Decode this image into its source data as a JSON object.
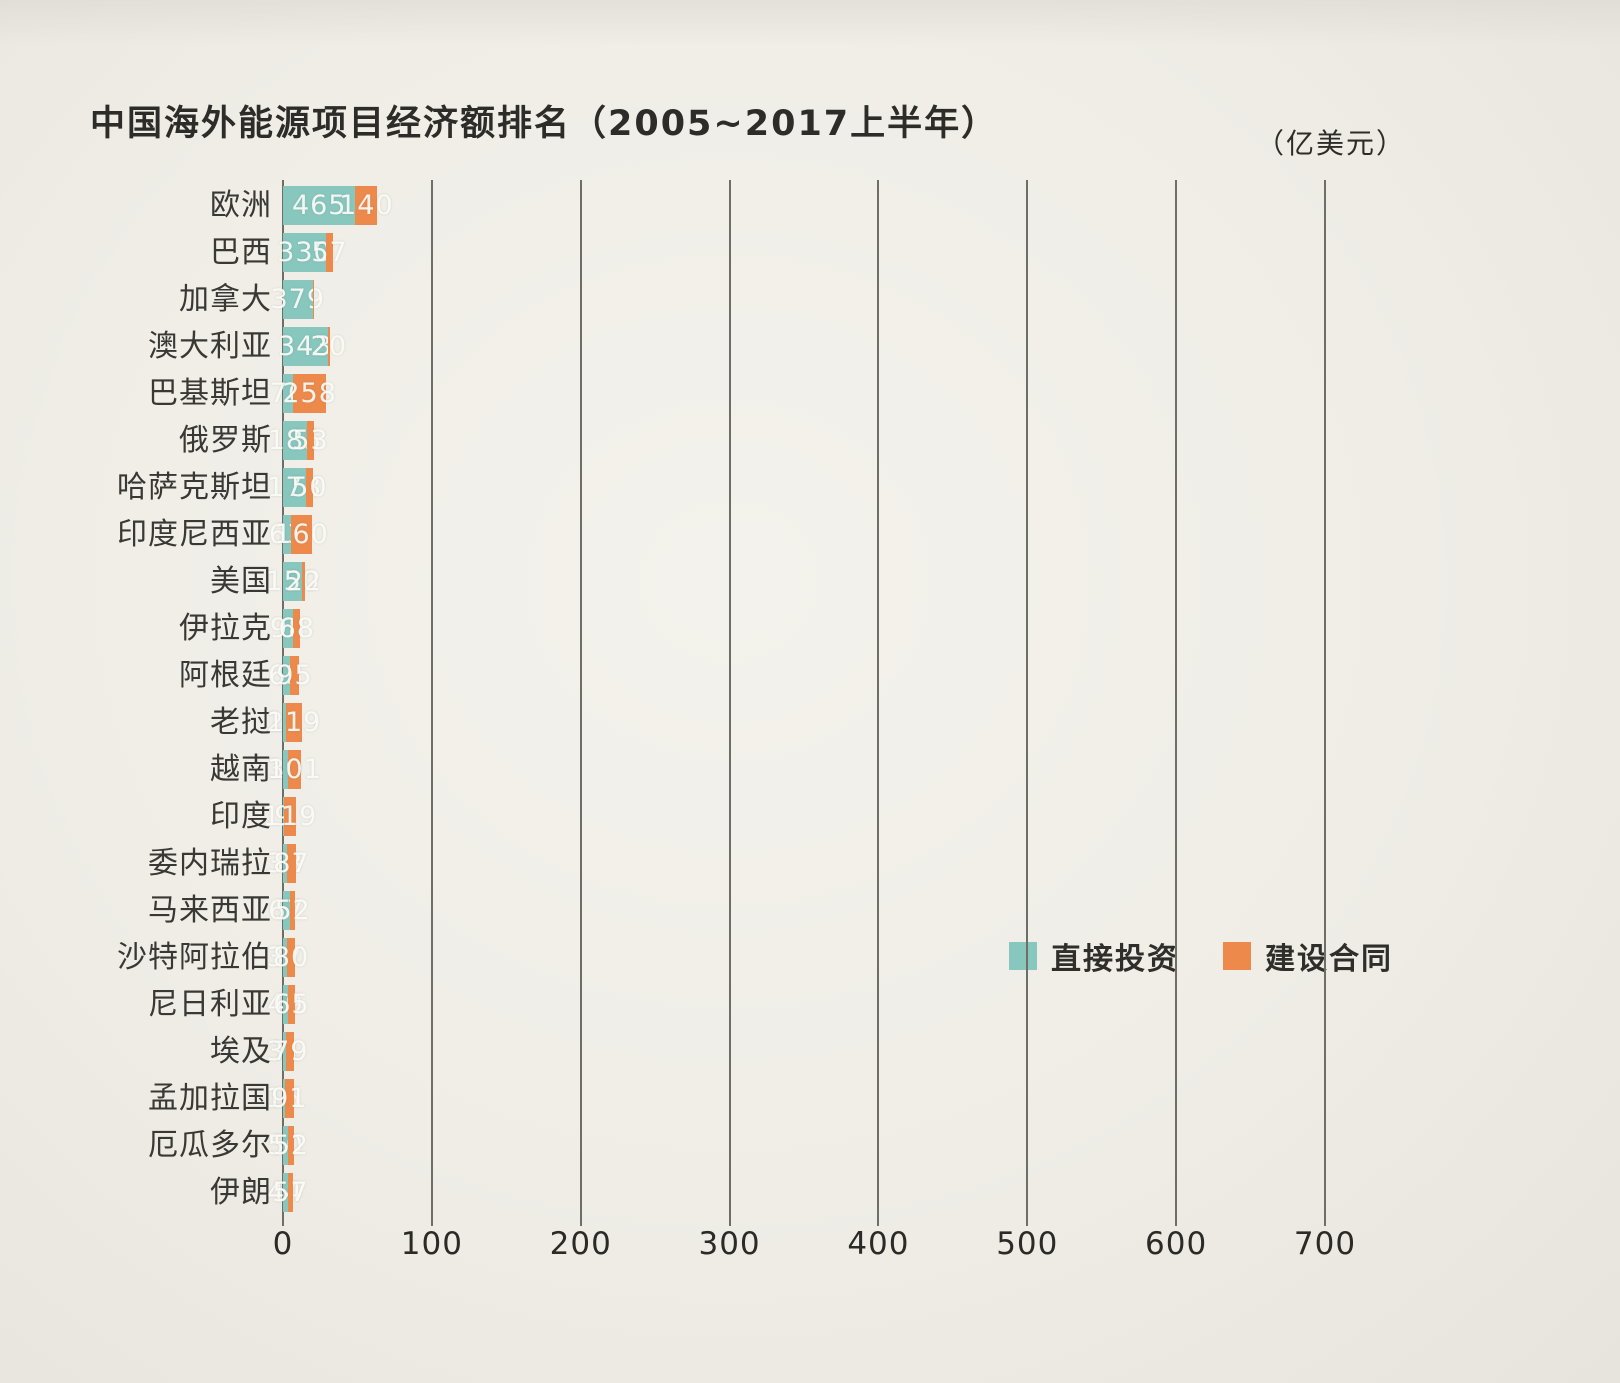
{
  "title": "中国海外能源项目经济额排名（2005~2017上半年）",
  "unit_label": "（亿美元）",
  "legend": [
    {
      "label": "直接投资",
      "color": "#87c7be"
    },
    {
      "label": "建设合同",
      "color": "#ed8a4b"
    }
  ],
  "chart_data": {
    "type": "bar",
    "orientation": "horizontal",
    "stacked": true,
    "title": "中国海外能源项目经济额排名（2005~2017上半年）",
    "unit": "亿美元",
    "grid": true,
    "legend_position": "inside-right",
    "xlim": [
      0,
      700
    ],
    "x_ticks": [
      0,
      100,
      200,
      300,
      400,
      500,
      600,
      700
    ],
    "categories": [
      "欧洲",
      "巴西",
      "加拿大",
      "澳大利亚",
      "巴基斯坦",
      "俄罗斯",
      "哈萨克斯坦",
      "印度尼西亚",
      "美国",
      "伊拉克",
      "阿根廷",
      "老挝",
      "越南",
      "印度",
      "委内瑞拉",
      "马来西亚",
      "沙特阿拉伯",
      "尼日利亚",
      "埃及",
      "孟加拉国",
      "厄瓜多尔",
      "伊朗"
    ],
    "series": [
      {
        "name": "直接投资",
        "color": "#87c7be",
        "values": [
          465,
          330,
          379,
          343,
          76,
          185,
          178,
          63,
          150,
          98,
          63,
          26,
          39,
          9,
          38,
          67,
          37,
          49,
          31,
          15,
          50,
          44
        ],
        "labels": [
          "465",
          "330",
          "379",
          "343",
          "76",
          "185",
          "178",
          "63",
          "150",
          "98",
          "63",
          "26",
          "39",
          "9",
          "38",
          "67",
          "37",
          "49",
          "31",
          "15",
          "50",
          "44"
        ]
      },
      {
        "name": "建设合同",
        "color": "#ed8a4b",
        "values": [
          140,
          57,
          1,
          20,
          258,
          53,
          50,
          160,
          22,
          68,
          95,
          119,
          101,
          119,
          87,
          52,
          80,
          65,
          79,
          91,
          52,
          57
        ],
        "labels": [
          "140",
          "57",
          "",
          "20",
          "258",
          "53",
          "50",
          "160",
          "22",
          "68",
          "95",
          "119",
          "101",
          "119",
          "87",
          "52",
          "80",
          "65",
          "79",
          "91",
          "52",
          "57"
        ]
      }
    ]
  }
}
